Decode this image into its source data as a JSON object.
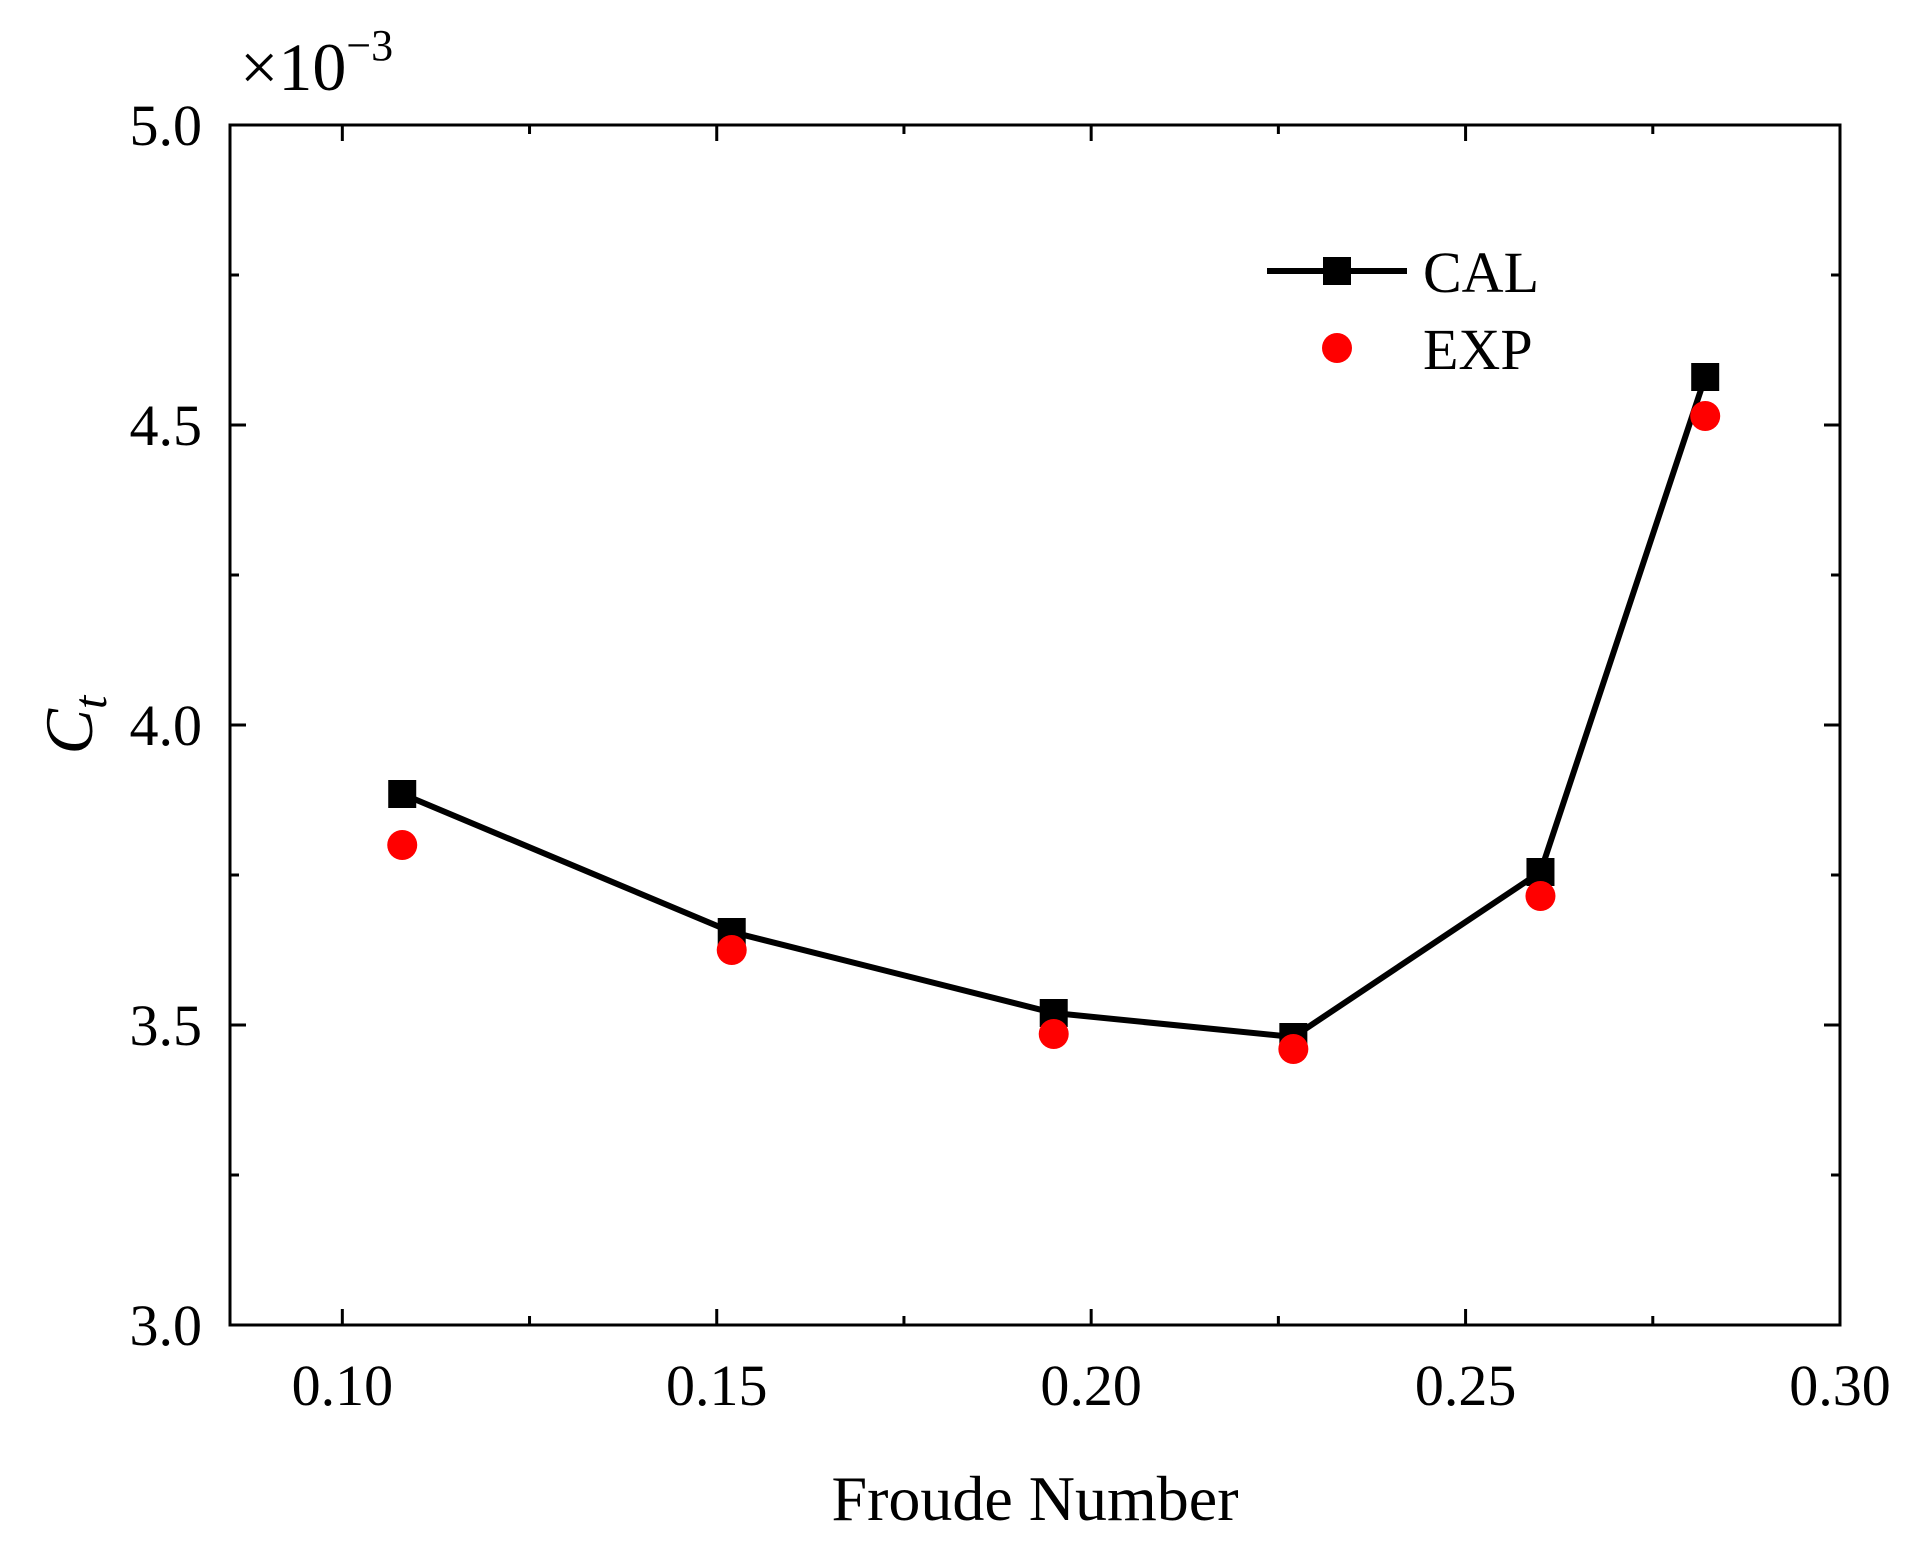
{
  "chart_data": {
    "type": "line",
    "title": "",
    "xlabel": "Froude Number",
    "ylabel_main": "C",
    "ylabel_sub": "t",
    "y_scale_text": {
      "base": "×10",
      "exponent": "−3"
    },
    "xlim": [
      0.085,
      0.3
    ],
    "ylim": [
      3.0,
      5.0
    ],
    "x_ticks": [
      0.1,
      0.15,
      0.2,
      0.25,
      0.3
    ],
    "x_tick_labels": [
      "0.10",
      "0.15",
      "0.20",
      "0.25",
      "0.30"
    ],
    "x_minor_ticks": [
      0.125,
      0.175,
      0.225,
      0.275
    ],
    "y_ticks": [
      3.0,
      3.5,
      4.0,
      4.5,
      5.0
    ],
    "y_tick_labels": [
      "3.0",
      "3.5",
      "4.0",
      "4.5",
      "5.0"
    ],
    "y_minor_ticks": [
      3.25,
      3.75,
      4.25,
      4.75
    ],
    "grid": false,
    "legend_position": "top-right",
    "series": [
      {
        "name": "CAL",
        "style": "line-square",
        "color": "#000000",
        "x": [
          0.108,
          0.152,
          0.195,
          0.227,
          0.26,
          0.282
        ],
        "y": [
          3.885,
          3.655,
          3.52,
          3.48,
          3.755,
          4.58
        ]
      },
      {
        "name": "EXP",
        "style": "circle",
        "color": "#ff0000",
        "x": [
          0.108,
          0.152,
          0.195,
          0.227,
          0.26,
          0.282
        ],
        "y": [
          3.8,
          3.625,
          3.485,
          3.46,
          3.715,
          4.515
        ]
      }
    ]
  }
}
